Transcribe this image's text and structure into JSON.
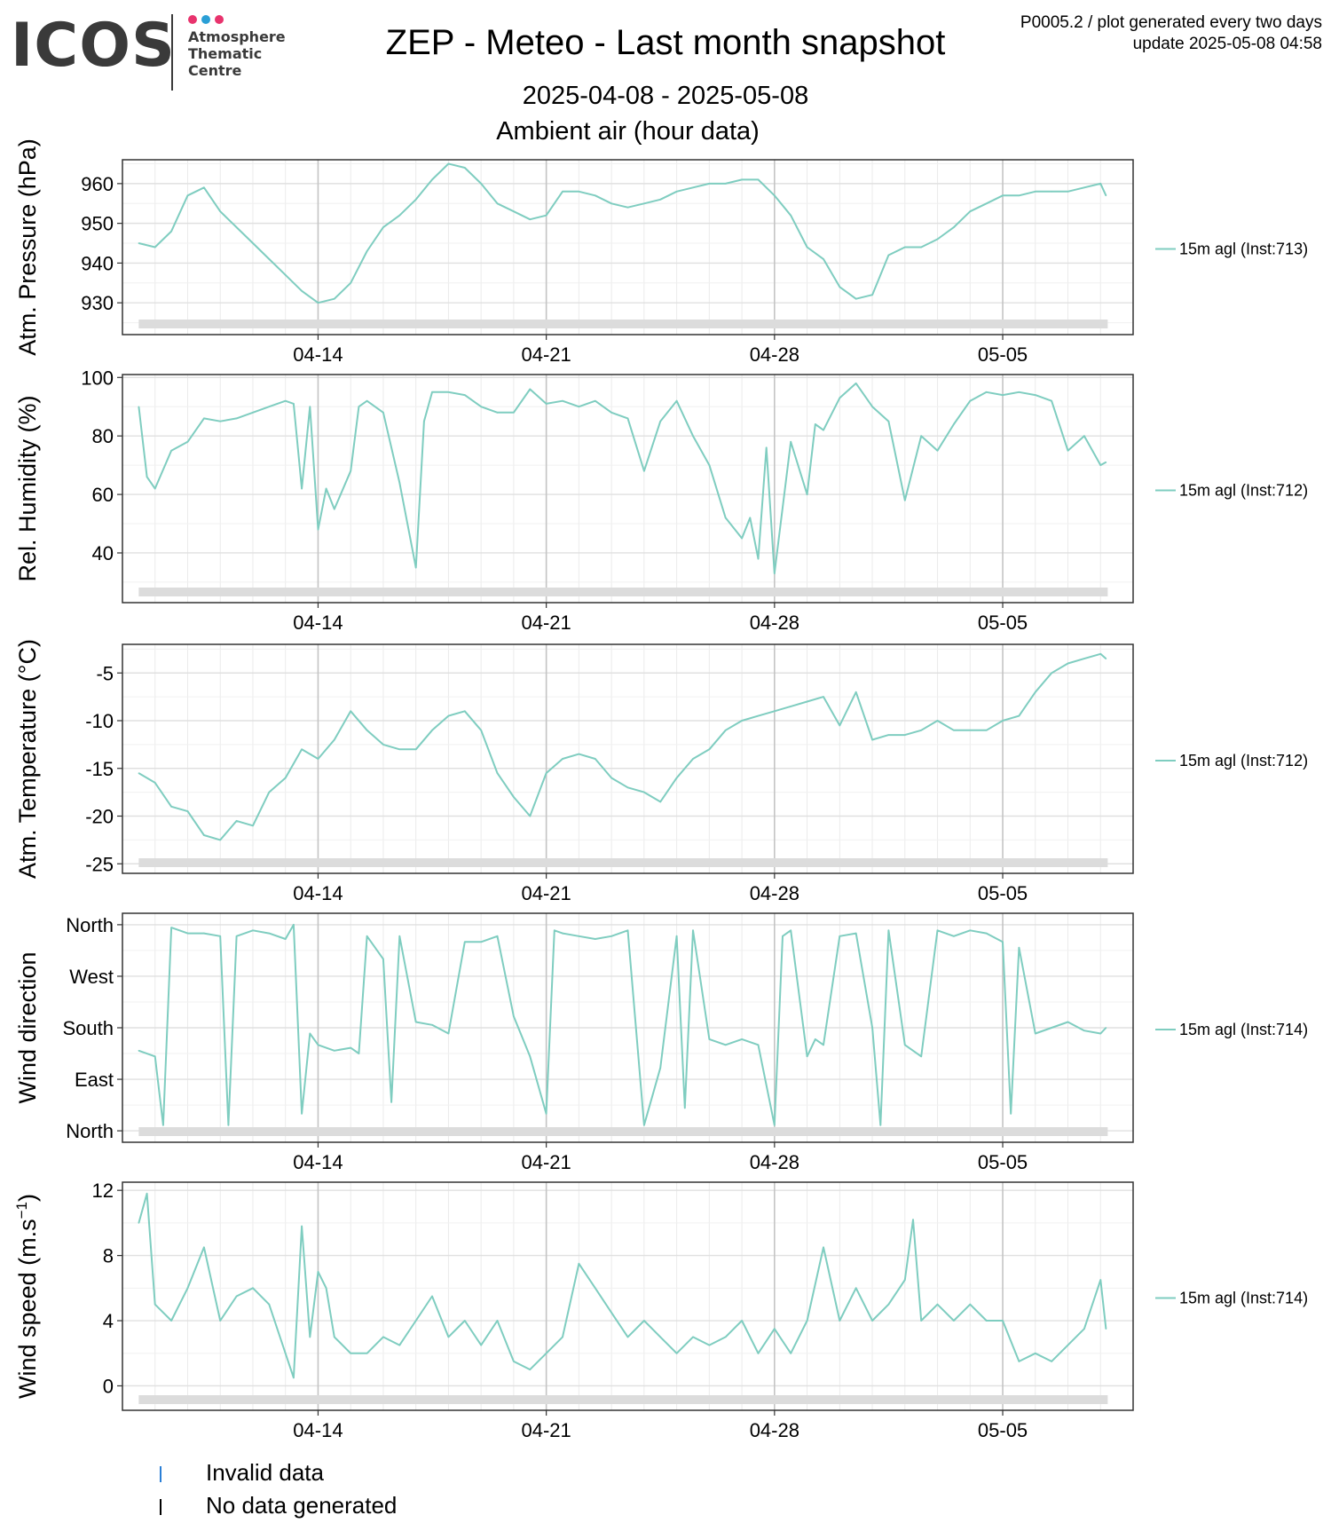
{
  "header": {
    "logo_word": "ICOS",
    "logo_sub": [
      "Atmosphere",
      "Thematic",
      "Centre"
    ],
    "logo_dots": [
      "#e8336d",
      "#2a9fd6",
      "#e8336d"
    ],
    "title": "ZEP - Meteo - Last month snapshot",
    "date_range": "2025-04-08 - 2025-05-08",
    "subtitle": "Ambient air (hour data)",
    "meta_line1": "P0005.2 / plot generated every two days",
    "meta_line2": "update  2025-05-08 04:58"
  },
  "legend": {
    "invalid_label": "Invalid data",
    "invalid_color": "#2a7fd6",
    "nodata_label": "No data generated",
    "nodata_color": "#000000"
  },
  "line_color": "#7fcdc0",
  "chart_data": [
    {
      "type": "line",
      "ylabel": "Atm. Pressure (hPa)",
      "series_label": "15m agl (Inst:713)",
      "ylim": [
        922,
        966
      ],
      "yticks": [
        930,
        940,
        950,
        960
      ],
      "ytick_labels": [
        "930",
        "940",
        "950",
        "960"
      ],
      "xlim": [
        "2025-04-08",
        "2025-05-09"
      ],
      "xticks": [
        "04-14",
        "04-21",
        "04-28",
        "05-05"
      ],
      "x": [
        "2025-04-08T12:00",
        "2025-04-09T00:00",
        "2025-04-09T12:00",
        "2025-04-10T00:00",
        "2025-04-10T12:00",
        "2025-04-11T00:00",
        "2025-04-11T12:00",
        "2025-04-12T00:00",
        "2025-04-12T12:00",
        "2025-04-13T00:00",
        "2025-04-13T12:00",
        "2025-04-14T00:00",
        "2025-04-14T12:00",
        "2025-04-15T00:00",
        "2025-04-15T12:00",
        "2025-04-16T00:00",
        "2025-04-16T12:00",
        "2025-04-17T00:00",
        "2025-04-17T12:00",
        "2025-04-18T00:00",
        "2025-04-18T12:00",
        "2025-04-19T00:00",
        "2025-04-19T12:00",
        "2025-04-20T00:00",
        "2025-04-20T12:00",
        "2025-04-21T00:00",
        "2025-04-21T12:00",
        "2025-04-22T00:00",
        "2025-04-22T12:00",
        "2025-04-23T00:00",
        "2025-04-23T12:00",
        "2025-04-24T00:00",
        "2025-04-24T12:00",
        "2025-04-25T00:00",
        "2025-04-25T12:00",
        "2025-04-26T00:00",
        "2025-04-26T12:00",
        "2025-04-27T00:00",
        "2025-04-27T12:00",
        "2025-04-28T00:00",
        "2025-04-28T12:00",
        "2025-04-29T00:00",
        "2025-04-29T12:00",
        "2025-04-30T00:00",
        "2025-04-30T12:00",
        "2025-05-01T00:00",
        "2025-05-01T12:00",
        "2025-05-02T00:00",
        "2025-05-02T12:00",
        "2025-05-03T00:00",
        "2025-05-03T12:00",
        "2025-05-04T00:00",
        "2025-05-04T12:00",
        "2025-05-05T00:00",
        "2025-05-05T12:00",
        "2025-05-06T00:00",
        "2025-05-06T12:00",
        "2025-05-07T00:00",
        "2025-05-07T12:00",
        "2025-05-08T00:00",
        "2025-05-08T04:00"
      ],
      "values": [
        945,
        944,
        948,
        957,
        959,
        953,
        949,
        945,
        941,
        937,
        933,
        930,
        931,
        935,
        943,
        949,
        952,
        956,
        961,
        965,
        964,
        960,
        955,
        953,
        951,
        952,
        958,
        958,
        957,
        955,
        954,
        955,
        956,
        958,
        959,
        960,
        960,
        961,
        961,
        957,
        952,
        944,
        941,
        934,
        931,
        932,
        942,
        944,
        944,
        946,
        949,
        953,
        955,
        957,
        957,
        958,
        958,
        958,
        959,
        960,
        957
      ]
    },
    {
      "type": "line",
      "ylabel": "Rel. Humidity (%)",
      "series_label": "15m agl (Inst:712)",
      "ylim": [
        23,
        101
      ],
      "yticks": [
        40,
        60,
        80,
        100
      ],
      "ytick_labels": [
        "40",
        "60",
        "80",
        "100"
      ],
      "xlim": [
        "2025-04-08",
        "2025-05-09"
      ],
      "xticks": [
        "04-14",
        "04-21",
        "04-28",
        "05-05"
      ],
      "x": [
        "2025-04-08T12:00",
        "2025-04-08T18:00",
        "2025-04-09T00:00",
        "2025-04-09T12:00",
        "2025-04-10T00:00",
        "2025-04-10T12:00",
        "2025-04-11T00:00",
        "2025-04-11T12:00",
        "2025-04-12T00:00",
        "2025-04-12T12:00",
        "2025-04-13T00:00",
        "2025-04-13T06:00",
        "2025-04-13T12:00",
        "2025-04-13T18:00",
        "2025-04-14T00:00",
        "2025-04-14T06:00",
        "2025-04-14T12:00",
        "2025-04-15T00:00",
        "2025-04-15T06:00",
        "2025-04-15T12:00",
        "2025-04-16T00:00",
        "2025-04-16T12:00",
        "2025-04-17T00:00",
        "2025-04-17T06:00",
        "2025-04-17T12:00",
        "2025-04-18T00:00",
        "2025-04-18T12:00",
        "2025-04-19T00:00",
        "2025-04-19T12:00",
        "2025-04-20T00:00",
        "2025-04-20T12:00",
        "2025-04-21T00:00",
        "2025-04-21T12:00",
        "2025-04-22T00:00",
        "2025-04-22T12:00",
        "2025-04-23T00:00",
        "2025-04-23T12:00",
        "2025-04-24T00:00",
        "2025-04-24T12:00",
        "2025-04-25T00:00",
        "2025-04-25T12:00",
        "2025-04-26T00:00",
        "2025-04-26T12:00",
        "2025-04-27T00:00",
        "2025-04-27T06:00",
        "2025-04-27T12:00",
        "2025-04-27T18:00",
        "2025-04-28T00:00",
        "2025-04-28T12:00",
        "2025-04-29T00:00",
        "2025-04-29T06:00",
        "2025-04-29T12:00",
        "2025-04-30T00:00",
        "2025-04-30T12:00",
        "2025-05-01T00:00",
        "2025-05-01T12:00",
        "2025-05-02T00:00",
        "2025-05-02T12:00",
        "2025-05-03T00:00",
        "2025-05-03T12:00",
        "2025-05-04T00:00",
        "2025-05-04T12:00",
        "2025-05-05T00:00",
        "2025-05-05T12:00",
        "2025-05-06T00:00",
        "2025-05-06T12:00",
        "2025-05-07T00:00",
        "2025-05-07T12:00",
        "2025-05-08T00:00",
        "2025-05-08T04:00"
      ],
      "values": [
        90,
        66,
        62,
        75,
        78,
        86,
        85,
        86,
        88,
        90,
        92,
        91,
        62,
        90,
        48,
        62,
        55,
        68,
        90,
        92,
        88,
        64,
        35,
        85,
        95,
        95,
        94,
        90,
        88,
        88,
        96,
        91,
        92,
        90,
        92,
        88,
        86,
        68,
        85,
        92,
        80,
        70,
        52,
        45,
        52,
        38,
        76,
        33,
        78,
        60,
        84,
        82,
        93,
        98,
        90,
        85,
        58,
        80,
        75,
        84,
        92,
        95,
        94,
        95,
        94,
        92,
        75,
        80,
        70,
        71
      ]
    },
    {
      "type": "line",
      "ylabel": "Atm. Temperature (°C)",
      "series_label": "15m agl (Inst:712)",
      "ylim": [
        -26,
        -2
      ],
      "yticks": [
        -25,
        -20,
        -15,
        -10,
        -5
      ],
      "ytick_labels": [
        "-25",
        "-20",
        "-15",
        "-10",
        "-5"
      ],
      "xlim": [
        "2025-04-08",
        "2025-05-09"
      ],
      "xticks": [
        "04-14",
        "04-21",
        "04-28",
        "05-05"
      ],
      "x": [
        "2025-04-08T12:00",
        "2025-04-09T00:00",
        "2025-04-09T12:00",
        "2025-04-10T00:00",
        "2025-04-10T12:00",
        "2025-04-11T00:00",
        "2025-04-11T12:00",
        "2025-04-12T00:00",
        "2025-04-12T12:00",
        "2025-04-13T00:00",
        "2025-04-13T12:00",
        "2025-04-14T00:00",
        "2025-04-14T12:00",
        "2025-04-15T00:00",
        "2025-04-15T12:00",
        "2025-04-16T00:00",
        "2025-04-16T12:00",
        "2025-04-17T00:00",
        "2025-04-17T12:00",
        "2025-04-18T00:00",
        "2025-04-18T12:00",
        "2025-04-19T00:00",
        "2025-04-19T12:00",
        "2025-04-20T00:00",
        "2025-04-20T12:00",
        "2025-04-21T00:00",
        "2025-04-21T12:00",
        "2025-04-22T00:00",
        "2025-04-22T12:00",
        "2025-04-23T00:00",
        "2025-04-23T12:00",
        "2025-04-24T00:00",
        "2025-04-24T12:00",
        "2025-04-25T00:00",
        "2025-04-25T12:00",
        "2025-04-26T00:00",
        "2025-04-26T12:00",
        "2025-04-27T00:00",
        "2025-04-27T12:00",
        "2025-04-28T00:00",
        "2025-04-28T12:00",
        "2025-04-29T00:00",
        "2025-04-29T12:00",
        "2025-04-30T00:00",
        "2025-04-30T12:00",
        "2025-05-01T00:00",
        "2025-05-01T12:00",
        "2025-05-02T00:00",
        "2025-05-02T12:00",
        "2025-05-03T00:00",
        "2025-05-03T12:00",
        "2025-05-04T00:00",
        "2025-05-04T12:00",
        "2025-05-05T00:00",
        "2025-05-05T12:00",
        "2025-05-06T00:00",
        "2025-05-06T12:00",
        "2025-05-07T00:00",
        "2025-05-07T12:00",
        "2025-05-08T00:00",
        "2025-05-08T04:00"
      ],
      "values": [
        -15.5,
        -16.5,
        -19,
        -19.5,
        -22,
        -22.5,
        -20.5,
        -21,
        -17.5,
        -16,
        -13,
        -14,
        -12,
        -9,
        -11,
        -12.5,
        -13,
        -13,
        -11,
        -9.5,
        -9,
        -11,
        -15.5,
        -18,
        -20,
        -15.5,
        -14,
        -13.5,
        -14,
        -16,
        -17,
        -17.5,
        -18.5,
        -16,
        -14,
        -13,
        -11,
        -10,
        -9.5,
        -9,
        -8.5,
        -8,
        -7.5,
        -10.5,
        -7,
        -12,
        -11.5,
        -11.5,
        -11,
        -10,
        -11,
        -11,
        -11,
        -10,
        -9.5,
        -7,
        -5,
        -4,
        -3.5,
        -3,
        -3.5
      ]
    },
    {
      "type": "line",
      "ylabel": "Wind direction",
      "series_label": "15m agl (Inst:714)",
      "ylim": [
        -20,
        380
      ],
      "yticks": [
        0,
        90,
        180,
        270,
        360
      ],
      "ytick_labels": [
        "North",
        "East",
        "South",
        "West",
        "North"
      ],
      "xlim": [
        "2025-04-08",
        "2025-05-09"
      ],
      "xticks": [
        "04-14",
        "04-21",
        "04-28",
        "05-05"
      ],
      "x": [
        "2025-04-08T12:00",
        "2025-04-09T00:00",
        "2025-04-09T06:00",
        "2025-04-09T12:00",
        "2025-04-10T00:00",
        "2025-04-10T12:00",
        "2025-04-11T00:00",
        "2025-04-11T06:00",
        "2025-04-11T12:00",
        "2025-04-12T00:00",
        "2025-04-12T12:00",
        "2025-04-13T00:00",
        "2025-04-13T06:00",
        "2025-04-13T12:00",
        "2025-04-13T18:00",
        "2025-04-14T00:00",
        "2025-04-14T12:00",
        "2025-04-15T00:00",
        "2025-04-15T06:00",
        "2025-04-15T12:00",
        "2025-04-16T00:00",
        "2025-04-16T06:00",
        "2025-04-16T12:00",
        "2025-04-17T00:00",
        "2025-04-17T12:00",
        "2025-04-18T00:00",
        "2025-04-18T12:00",
        "2025-04-19T00:00",
        "2025-04-19T12:00",
        "2025-04-20T00:00",
        "2025-04-20T12:00",
        "2025-04-21T00:00",
        "2025-04-21T06:00",
        "2025-04-21T12:00",
        "2025-04-22T00:00",
        "2025-04-22T12:00",
        "2025-04-23T00:00",
        "2025-04-23T12:00",
        "2025-04-24T00:00",
        "2025-04-24T12:00",
        "2025-04-25T00:00",
        "2025-04-25T06:00",
        "2025-04-25T12:00",
        "2025-04-26T00:00",
        "2025-04-26T12:00",
        "2025-04-27T00:00",
        "2025-04-27T12:00",
        "2025-04-28T00:00",
        "2025-04-28T06:00",
        "2025-04-28T12:00",
        "2025-04-29T00:00",
        "2025-04-29T06:00",
        "2025-04-29T12:00",
        "2025-04-30T00:00",
        "2025-04-30T12:00",
        "2025-05-01T00:00",
        "2025-05-01T06:00",
        "2025-05-01T12:00",
        "2025-05-02T00:00",
        "2025-05-02T12:00",
        "2025-05-03T00:00",
        "2025-05-03T12:00",
        "2025-05-04T00:00",
        "2025-05-04T12:00",
        "2025-05-05T00:00",
        "2025-05-05T06:00",
        "2025-05-05T12:00",
        "2025-05-06T00:00",
        "2025-05-06T12:00",
        "2025-05-07T00:00",
        "2025-05-07T12:00",
        "2025-05-08T00:00",
        "2025-05-08T04:00"
      ],
      "values": [
        140,
        130,
        10,
        355,
        345,
        345,
        340,
        10,
        340,
        350,
        345,
        335,
        360,
        30,
        170,
        150,
        140,
        145,
        135,
        340,
        300,
        50,
        340,
        190,
        185,
        170,
        330,
        330,
        340,
        200,
        130,
        30,
        350,
        345,
        340,
        335,
        340,
        350,
        10,
        110,
        340,
        40,
        350,
        160,
        150,
        160,
        150,
        10,
        340,
        350,
        130,
        160,
        150,
        340,
        345,
        180,
        10,
        350,
        150,
        130,
        350,
        340,
        350,
        345,
        330,
        30,
        320,
        170,
        180,
        190,
        175,
        170,
        180
      ]
    },
    {
      "type": "line",
      "ylabel": "Wind speed (m.s−1)",
      "ylabel_base": "Wind speed (m.s",
      "ylabel_exp": "−1",
      "ylabel_close": ")",
      "series_label": "15m agl (Inst:714)",
      "ylim": [
        -1.5,
        12.5
      ],
      "yticks": [
        0,
        4,
        8,
        12
      ],
      "ytick_labels": [
        "0",
        "4",
        "8",
        "12"
      ],
      "xlim": [
        "2025-04-08",
        "2025-05-09"
      ],
      "xticks": [
        "04-14",
        "04-21",
        "04-28",
        "05-05"
      ],
      "x": [
        "2025-04-08T12:00",
        "2025-04-08T18:00",
        "2025-04-09T00:00",
        "2025-04-09T12:00",
        "2025-04-10T00:00",
        "2025-04-10T12:00",
        "2025-04-11T00:00",
        "2025-04-11T12:00",
        "2025-04-12T00:00",
        "2025-04-12T12:00",
        "2025-04-13T00:00",
        "2025-04-13T06:00",
        "2025-04-13T12:00",
        "2025-04-13T18:00",
        "2025-04-14T00:00",
        "2025-04-14T06:00",
        "2025-04-14T12:00",
        "2025-04-15T00:00",
        "2025-04-15T12:00",
        "2025-04-16T00:00",
        "2025-04-16T12:00",
        "2025-04-17T00:00",
        "2025-04-17T12:00",
        "2025-04-18T00:00",
        "2025-04-18T12:00",
        "2025-04-19T00:00",
        "2025-04-19T12:00",
        "2025-04-20T00:00",
        "2025-04-20T12:00",
        "2025-04-21T00:00",
        "2025-04-21T12:00",
        "2025-04-22T00:00",
        "2025-04-22T12:00",
        "2025-04-23T00:00",
        "2025-04-23T12:00",
        "2025-04-24T00:00",
        "2025-04-24T12:00",
        "2025-04-25T00:00",
        "2025-04-25T12:00",
        "2025-04-26T00:00",
        "2025-04-26T12:00",
        "2025-04-27T00:00",
        "2025-04-27T12:00",
        "2025-04-28T00:00",
        "2025-04-28T12:00",
        "2025-04-29T00:00",
        "2025-04-29T12:00",
        "2025-04-30T00:00",
        "2025-04-30T12:00",
        "2025-05-01T00:00",
        "2025-05-01T12:00",
        "2025-05-02T00:00",
        "2025-05-02T06:00",
        "2025-05-02T12:00",
        "2025-05-03T00:00",
        "2025-05-03T12:00",
        "2025-05-04T00:00",
        "2025-05-04T12:00",
        "2025-05-05T00:00",
        "2025-05-05T12:00",
        "2025-05-06T00:00",
        "2025-05-06T12:00",
        "2025-05-07T00:00",
        "2025-05-07T12:00",
        "2025-05-08T00:00",
        "2025-05-08T04:00"
      ],
      "values": [
        10,
        11.8,
        5,
        4,
        6,
        8.5,
        4,
        5.5,
        6,
        5,
        2,
        0.5,
        9.8,
        3,
        7,
        6,
        3,
        2,
        2,
        3,
        2.5,
        4,
        5.5,
        3,
        4,
        2.5,
        4,
        1.5,
        1,
        2,
        3,
        7.5,
        6,
        4.5,
        3,
        4,
        3,
        2,
        3,
        2.5,
        3,
        4,
        2,
        3.5,
        2,
        4,
        8.5,
        4,
        6,
        4,
        5,
        6.5,
        10.2,
        4,
        5,
        4,
        5,
        4,
        4,
        1.5,
        2,
        1.5,
        2.5,
        3.5,
        6.5,
        3.5
      ]
    }
  ]
}
